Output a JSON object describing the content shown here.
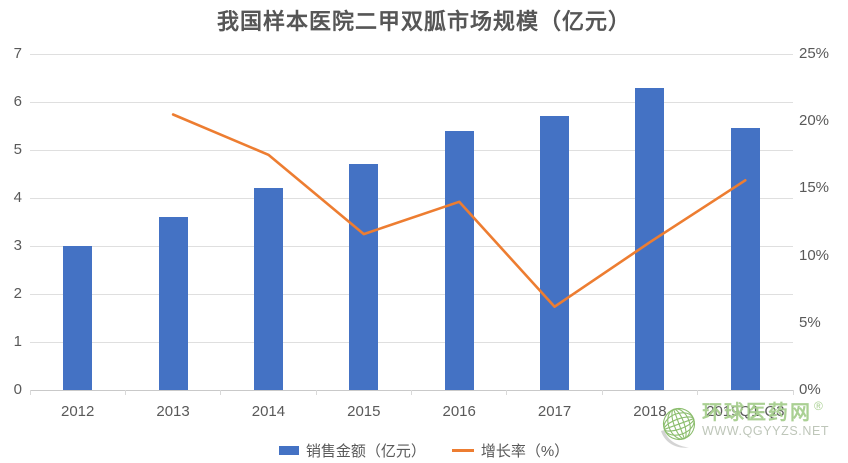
{
  "chart_data": {
    "type": "bar",
    "subtype": "combo-bar-line",
    "title": "我国样本医院二甲双胍市场规模（亿元）",
    "categories": [
      "2012",
      "2013",
      "2014",
      "2015",
      "2016",
      "2017",
      "2018",
      "2019Q1-Q3"
    ],
    "series": [
      {
        "name": "销售金额（亿元）",
        "type": "bar",
        "axis": "left",
        "color": "#4472C4",
        "values": [
          3.0,
          3.6,
          4.2,
          4.7,
          5.4,
          5.7,
          6.3,
          5.45
        ]
      },
      {
        "name": "增长率（%）",
        "type": "line",
        "axis": "right",
        "color": "#ED7D31",
        "values": [
          null,
          20.5,
          17.5,
          11.6,
          14.0,
          6.2,
          11.0,
          15.6
        ]
      }
    ],
    "left_axis": {
      "min": 0,
      "max": 7,
      "step": 1,
      "ticks": [
        "0",
        "1",
        "2",
        "3",
        "4",
        "5",
        "6",
        "7"
      ]
    },
    "right_axis": {
      "min": 0,
      "max": 25,
      "step": 5,
      "ticks": [
        "0%",
        "5%",
        "10%",
        "15%",
        "20%",
        "25%"
      ]
    },
    "grid": true,
    "legend_position": "bottom"
  },
  "colors": {
    "bar": "#4472C4",
    "line": "#ED7D31",
    "grid": "#DFDFDF",
    "axis_text": "#595959",
    "title_text": "#565656",
    "watermark_green": "#A6CE8E",
    "watermark_globe": "#85BA66",
    "watermark_gray": "#BBC3B6"
  },
  "watermark": {
    "site_name": "环球医药网",
    "registered_mark": "®",
    "url": "WWW.QGYYZS.NET"
  }
}
